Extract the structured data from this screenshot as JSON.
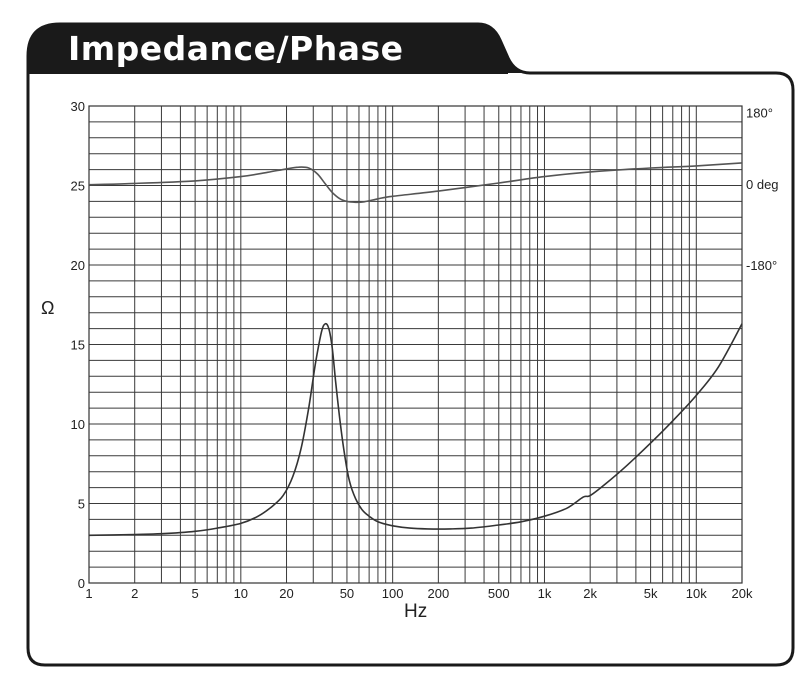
{
  "header": {
    "title": "Impedance/Phase"
  },
  "chart_data": {
    "type": "line",
    "title": "Impedance/Phase",
    "xlabel": "Hz",
    "ylabel": "Ω",
    "y2label": "deg",
    "xscale": "log",
    "xlim": [
      1,
      20000
    ],
    "ylim": [
      0,
      30
    ],
    "y2lim_note": "phase axis: 180° at top region, 0 deg near 25 Ω line, -180° near 20 Ω line",
    "grid": true,
    "legend": null,
    "x_ticks": [
      1,
      2,
      5,
      10,
      20,
      50,
      100,
      200,
      500,
      1000,
      2000,
      5000,
      10000,
      20000
    ],
    "x_tick_labels": [
      "1",
      "2",
      "5",
      "10",
      "20",
      "50",
      "100",
      "200",
      "500",
      "1k",
      "2k",
      "5k",
      "10k",
      "20k"
    ],
    "y_ticks": [
      0,
      5,
      10,
      15,
      20,
      25,
      30
    ],
    "y_tick_labels": [
      "0",
      "5",
      "10",
      "15",
      "20",
      "25",
      "30"
    ],
    "y2_tick_labels": [
      {
        "label": "180°",
        "y_ohm": 29.6
      },
      {
        "label": "0 deg",
        "y_ohm": 25.1
      },
      {
        "label": "-180°",
        "y_ohm": 20.0
      }
    ],
    "series": [
      {
        "name": "Impedance",
        "unit": "Ω",
        "color": "#333333",
        "x": [
          1,
          2,
          3,
          5,
          7,
          10,
          13,
          16,
          19,
          22,
          25,
          28,
          31,
          34,
          36,
          38,
          40,
          42,
          45,
          48,
          52,
          57,
          63,
          70,
          80,
          100,
          130,
          170,
          240,
          330,
          500,
          700,
          1000,
          1400,
          1800,
          2000,
          2500,
          3500,
          5000,
          7000,
          10000,
          14000,
          20000
        ],
        "values": [
          3.0,
          3.05,
          3.1,
          3.25,
          3.45,
          3.75,
          4.2,
          4.8,
          5.5,
          6.7,
          8.5,
          11.0,
          13.8,
          15.8,
          16.3,
          16.0,
          14.8,
          12.8,
          10.2,
          8.2,
          6.4,
          5.3,
          4.6,
          4.2,
          3.85,
          3.6,
          3.45,
          3.4,
          3.4,
          3.45,
          3.65,
          3.85,
          4.2,
          4.7,
          5.4,
          5.5,
          6.2,
          7.4,
          8.8,
          10.2,
          11.8,
          13.6,
          16.3
        ]
      },
      {
        "name": "Phase",
        "unit": "deg",
        "color": "#555555",
        "x": [
          1,
          2,
          5,
          10,
          15,
          20,
          24,
          28,
          32,
          36,
          40,
          45,
          50,
          57,
          65,
          80,
          100,
          200,
          500,
          1000,
          2000,
          5000,
          10000,
          20000
        ],
        "values": [
          3,
          6,
          12,
          22,
          32,
          40,
          44,
          42,
          28,
          5,
          -15,
          -30,
          -36,
          -38,
          -37,
          -30,
          -24,
          -12,
          7,
          22,
          33,
          42,
          47,
          54
        ]
      }
    ]
  }
}
